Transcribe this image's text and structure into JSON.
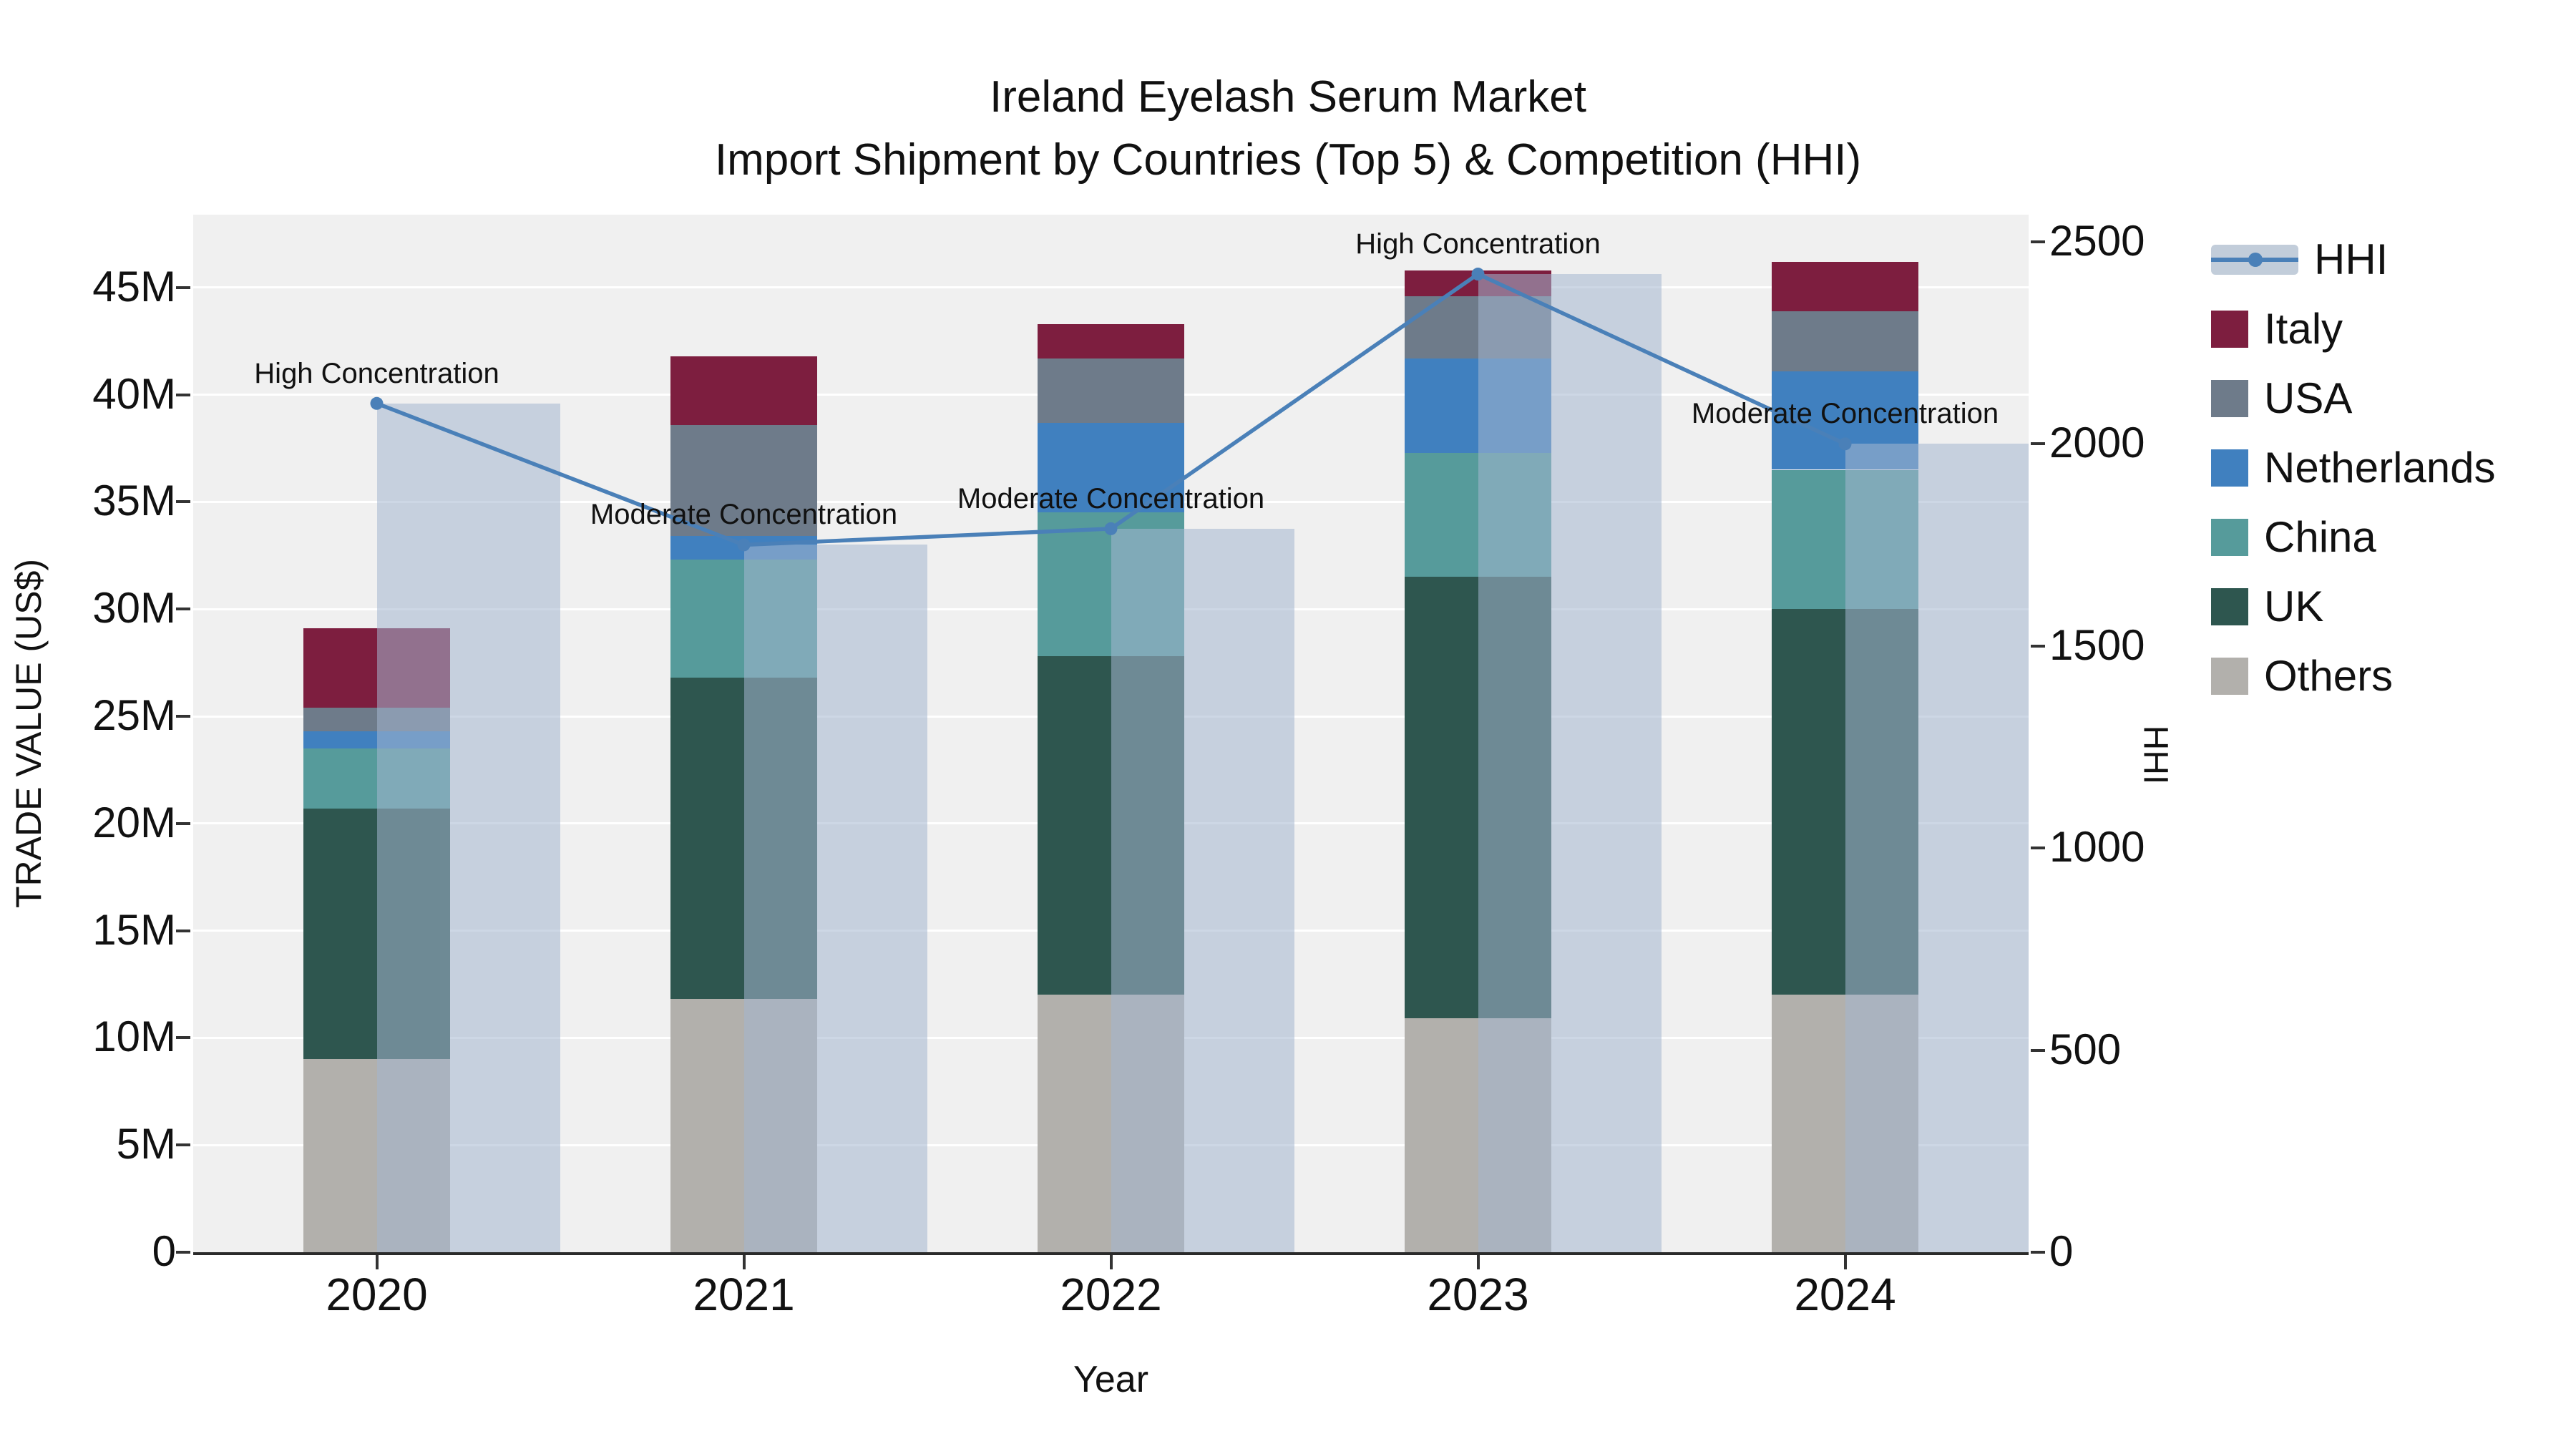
{
  "chart_data": {
    "type": "bar",
    "subtype": "stacked-bar-with-line-overlay",
    "title_line1": "Ireland Eyelash Serum Market",
    "title_line2": "Import Shipment by Countries (Top 5) & Competition (HHI)",
    "xlabel": "Year",
    "ylabel_left": "TRADE VALUE (US$)",
    "ylabel_right": "HHI",
    "categories": [
      "2020",
      "2021",
      "2022",
      "2023",
      "2024"
    ],
    "value_unit": "millions USD",
    "stack_series": [
      {
        "name": "Others",
        "color": "#b2b0ac",
        "values": [
          9.0,
          11.8,
          12.0,
          10.9,
          12.0
        ]
      },
      {
        "name": "UK",
        "color": "#2e564f",
        "values": [
          11.7,
          15.0,
          15.8,
          20.6,
          18.0
        ]
      },
      {
        "name": "China",
        "color": "#569b9b",
        "values": [
          2.8,
          5.5,
          6.7,
          5.8,
          6.5
        ]
      },
      {
        "name": "Netherlands",
        "color": "#4080bf",
        "values": [
          0.8,
          1.1,
          4.2,
          4.4,
          4.6
        ]
      },
      {
        "name": "USA",
        "color": "#6e7b8a",
        "values": [
          1.1,
          5.2,
          3.0,
          2.9,
          2.8
        ]
      },
      {
        "name": "Italy",
        "color": "#7d1e3f",
        "values": [
          3.7,
          3.2,
          1.6,
          1.2,
          2.3
        ]
      }
    ],
    "totals": [
      29.1,
      41.8,
      43.3,
      45.8,
      46.2
    ],
    "hhi": {
      "name": "HHI",
      "values": [
        2100,
        1750,
        1790,
        2420,
        2000
      ],
      "line_color": "#4a80b8",
      "bar_color": "rgba(164,183,207,0.55)",
      "legend_band_color": "#c2cdda"
    },
    "annotations": [
      "High Concentration",
      "Moderate Concentration",
      "Moderate Concentration",
      "High Concentration",
      "Moderate Concentration"
    ],
    "left_axis": {
      "ticks": [
        "0",
        "5M",
        "10M",
        "15M",
        "20M",
        "25M",
        "30M",
        "35M",
        "40M",
        "45M"
      ],
      "tick_values": [
        0,
        5,
        10,
        15,
        20,
        25,
        30,
        35,
        40,
        45
      ],
      "max": 48.4
    },
    "right_axis": {
      "ticks": [
        "0",
        "500",
        "1000",
        "1500",
        "2000",
        "2500"
      ],
      "tick_values": [
        0,
        500,
        1000,
        1500,
        2000,
        2500
      ],
      "max": 2567
    },
    "legend": [
      "HHI",
      "Italy",
      "USA",
      "Netherlands",
      "China",
      "UK",
      "Others"
    ],
    "plot_background": "#f0f0f0"
  }
}
